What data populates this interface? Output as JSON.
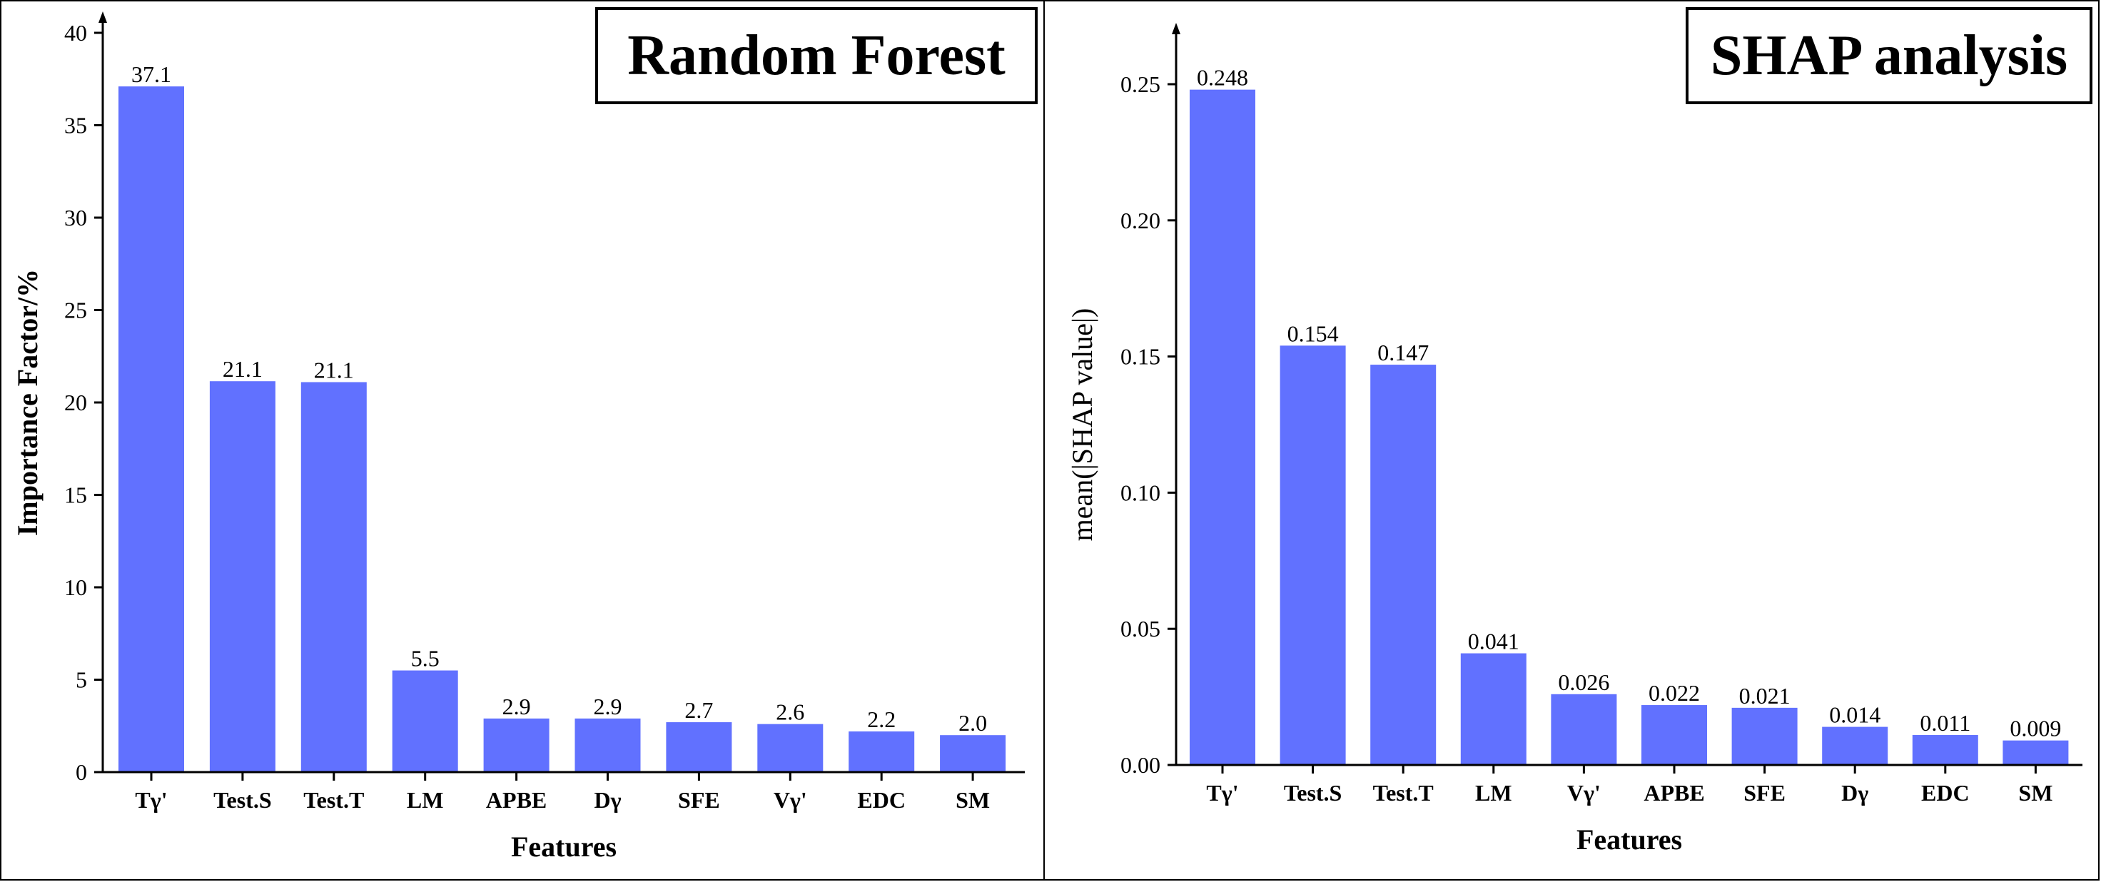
{
  "chart_data": [
    {
      "type": "bar",
      "title": "Random Forest",
      "xlabel": "Features",
      "ylabel": "Importance Factor/%",
      "ylim": [
        0,
        40
      ],
      "yticks": [
        0,
        5,
        10,
        15,
        20,
        25,
        30,
        35,
        40
      ],
      "ytick_labels": [
        "0",
        "5",
        "10",
        "15",
        "20",
        "25",
        "30",
        "35",
        "40"
      ],
      "categories": [
        "Tγ'",
        "Test.S",
        "Test.T",
        "LM",
        "APBE",
        "Dγ",
        "SFE",
        "Vγ'",
        "EDC",
        "SM"
      ],
      "values": [
        37.1,
        21.15,
        21.1,
        5.5,
        2.9,
        2.9,
        2.7,
        2.6,
        2.2,
        2.0
      ],
      "data_labels": [
        "37.1",
        "21.1",
        "21.1",
        "5.5",
        "2.9",
        "2.9",
        "2.7",
        "2.6",
        "2.2",
        "2.0"
      ],
      "bar_color": "#6171ff",
      "ylabel_bold": true,
      "grid": false,
      "legend": "none"
    },
    {
      "type": "bar",
      "title": "SHAP analysis",
      "xlabel": "Features",
      "ylabel": "mean(|SHAP value|)",
      "ylim": [
        0,
        0.25
      ],
      "yticks": [
        0,
        0.05,
        0.1,
        0.15,
        0.2,
        0.25
      ],
      "ytick_labels": [
        "0.00",
        "0.05",
        "0.10",
        "0.15",
        "0.20",
        "0.25"
      ],
      "categories": [
        "Tγ'",
        "Test.S",
        "Test.T",
        "LM",
        "Vγ'",
        "APBE",
        "SFE",
        "Dγ",
        "EDC",
        "SM"
      ],
      "values": [
        0.248,
        0.154,
        0.147,
        0.041,
        0.026,
        0.022,
        0.021,
        0.014,
        0.011,
        0.009
      ],
      "data_labels": [
        "0.248",
        "0.154",
        "0.147",
        "0.041",
        "0.026",
        "0.022",
        "0.021",
        "0.014",
        "0.011",
        "0.009"
      ],
      "bar_color": "#6171ff",
      "ylabel_bold": false,
      "grid": false,
      "legend": "none"
    }
  ]
}
